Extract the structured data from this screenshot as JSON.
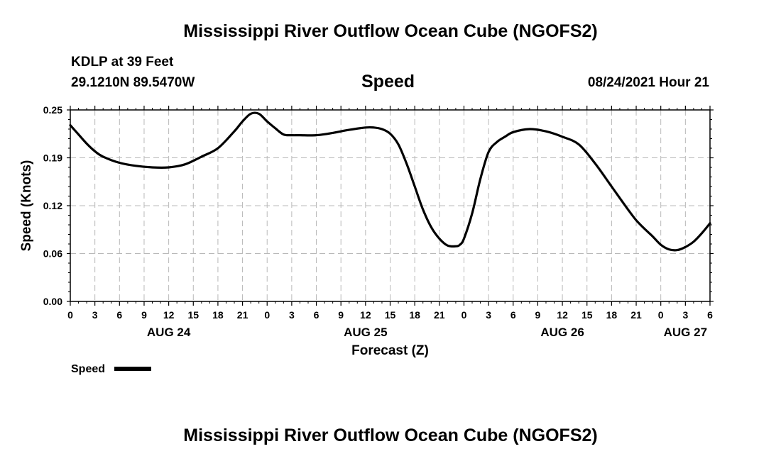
{
  "header": {
    "title": "Mississippi River Outflow Ocean Cube (NGOFS2)",
    "station": "KDLP at 39 Feet",
    "location": "29.1210N  89.5470W",
    "datetime": "08/24/2021 Hour 21"
  },
  "footer": {
    "title": "Mississippi River Outflow Ocean Cube (NGOFS2)"
  },
  "chart_data": {
    "type": "line",
    "title": "Speed",
    "xlabel": "Forecast (Z)",
    "ylabel": "Speed (Knots)",
    "ylim": [
      0,
      0.25
    ],
    "yticks": [
      "0.00",
      "0.06",
      "0.12",
      "0.19",
      "0.25"
    ],
    "ytick_values": [
      0,
      0.0625,
      0.125,
      0.1875,
      0.25
    ],
    "xlim_hours": [
      0,
      78
    ],
    "xtick_labels": [
      "0",
      "3",
      "6",
      "9",
      "12",
      "15",
      "18",
      "21",
      "0",
      "3",
      "6",
      "9",
      "12",
      "15",
      "18",
      "21",
      "0",
      "3",
      "6",
      "9",
      "12",
      "15",
      "18",
      "21",
      "0",
      "3",
      "6"
    ],
    "date_labels": [
      {
        "label": "AUG 24",
        "hour": 12
      },
      {
        "label": "AUG 25",
        "hour": 36
      },
      {
        "label": "AUG 26",
        "hour": 60
      },
      {
        "label": "AUG 27",
        "hour": 75
      }
    ],
    "grid": true,
    "legend": "bottom-left",
    "line_color": "#000000",
    "series": [
      {
        "name": "Speed",
        "x": [
          0,
          1,
          2,
          3,
          4,
          6,
          8,
          10,
          12,
          14,
          16,
          18,
          20,
          21,
          22,
          23,
          24,
          25,
          26,
          27,
          28,
          30,
          32,
          34,
          36,
          37,
          38,
          39,
          40,
          41,
          42,
          43,
          44,
          45,
          46,
          47,
          47.5,
          48,
          49,
          50,
          51,
          52,
          53,
          54,
          56,
          58,
          60,
          62,
          64,
          66,
          68,
          69,
          70,
          71,
          72,
          73,
          74,
          75,
          76,
          77,
          78
        ],
        "y": [
          0.23,
          0.218,
          0.206,
          0.196,
          0.189,
          0.181,
          0.177,
          0.175,
          0.175,
          0.179,
          0.189,
          0.2,
          0.222,
          0.235,
          0.245,
          0.245,
          0.235,
          0.226,
          0.218,
          0.217,
          0.217,
          0.217,
          0.22,
          0.224,
          0.227,
          0.227,
          0.225,
          0.219,
          0.205,
          0.18,
          0.15,
          0.12,
          0.097,
          0.082,
          0.073,
          0.072,
          0.074,
          0.082,
          0.115,
          0.16,
          0.195,
          0.208,
          0.215,
          0.221,
          0.225,
          0.222,
          0.215,
          0.205,
          0.18,
          0.15,
          0.12,
          0.106,
          0.095,
          0.085,
          0.074,
          0.068,
          0.067,
          0.071,
          0.078,
          0.089,
          0.102
        ]
      }
    ]
  }
}
